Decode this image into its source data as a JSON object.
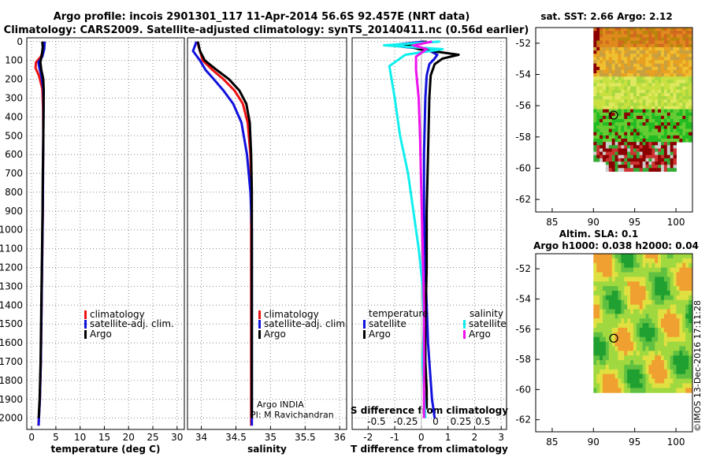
{
  "title_line1": "Argo profile: incois 2901301_117 11-Apr-2014 56.6S 92.457E (NRT data)",
  "title_line2": "Climatology: CARS2009. Satellite-adjusted climatology: synTS_20140411.nc (0.56d earlier)",
  "colors": {
    "climatology": "#ee1111",
    "satellite": "#1111dd",
    "argo": "#000000",
    "cyan": "#11eeee",
    "magenta": "#ee11ee"
  },
  "watermark": "©IMOS 13-Dec-2016 17:11:28",
  "credit": {
    "line1": "Argo INDIA",
    "line2": "PI: M Ravichandran"
  },
  "legends": {
    "temp": [
      "climatology",
      "satellite-adj. clim.",
      "Argo"
    ],
    "sal": [
      "climatology",
      "satellite-adj. clim.",
      "Argo"
    ],
    "diff_temperature_title": "temperature",
    "diff_salinity_title": "salinity",
    "diff_temperature": [
      "satellite",
      "Argo"
    ],
    "diff_salinity": [
      "satellite",
      "Argo"
    ]
  },
  "sst_panel": {
    "title": "sat. SST: 2.66 Argo: 2.12",
    "xticks": [
      "85",
      "90",
      "95",
      "100"
    ],
    "yticks": [
      "-52",
      "-54",
      "-56",
      "-58",
      "-60",
      "-62"
    ]
  },
  "sla_panel": {
    "title1": "Altim. SLA: 0.1",
    "title2": "Argo h1000: 0.038 h2000: 0.04",
    "xticks": [
      "85",
      "90",
      "95",
      "100"
    ],
    "yticks": [
      "-52",
      "-54",
      "-56",
      "-58",
      "-60",
      "-62"
    ]
  },
  "chart_data": [
    {
      "type": "line",
      "xlabel": "temperature (deg C)",
      "ylabel": "",
      "xlim": [
        -1,
        31.5
      ],
      "ylim": [
        2060,
        -20
      ],
      "xticks": [
        "0",
        "5",
        "10",
        "15",
        "20",
        "25",
        "30"
      ],
      "xtick_values": [
        0,
        5,
        10,
        15,
        20,
        25,
        30
      ],
      "yticks": [
        "0",
        "100",
        "200",
        "300",
        "400",
        "500",
        "600",
        "700",
        "800",
        "900",
        "1000",
        "1100",
        "1200",
        "1300",
        "1400",
        "1500",
        "1600",
        "1700",
        "1800",
        "1900",
        "2000"
      ],
      "ytick_values": [
        0,
        100,
        200,
        300,
        400,
        500,
        600,
        700,
        800,
        900,
        1000,
        1100,
        1200,
        1300,
        1400,
        1500,
        1600,
        1700,
        1800,
        1900,
        2000
      ],
      "series": [
        {
          "name": "climatology",
          "color": "#ee1111",
          "x": [
            2.6,
            2.5,
            1.9,
            0.9,
            0.8,
            1.5,
            2.2,
            2.35,
            2.4,
            2.35,
            2.3,
            2.2,
            2.1,
            2.0,
            1.9,
            1.8,
            1.7,
            1.6,
            1.5,
            1.4
          ],
          "y": [
            0,
            40,
            80,
            110,
            140,
            180,
            250,
            350,
            500,
            700,
            900,
            1100,
            1300,
            1500,
            1700,
            1800,
            1900,
            1950,
            2000,
            2040
          ]
        },
        {
          "name": "satellite-adj. clim.",
          "color": "#1111dd",
          "x": [
            2.7,
            2.6,
            2.2,
            1.4,
            1.6,
            2.0,
            2.4,
            2.45,
            2.4,
            2.35,
            2.3,
            2.2,
            2.1,
            2.0,
            1.9,
            1.8,
            1.7,
            1.6,
            1.5,
            1.45
          ],
          "y": [
            0,
            40,
            80,
            110,
            140,
            180,
            250,
            350,
            500,
            700,
            900,
            1100,
            1300,
            1500,
            1700,
            1800,
            1900,
            1950,
            2000,
            2040
          ]
        },
        {
          "name": "Argo",
          "color": "#000000",
          "x": [
            2.2,
            2.3,
            2.1,
            1.8,
            2.0,
            2.4,
            2.5,
            2.45,
            2.4,
            2.3,
            2.25,
            2.15,
            2.05,
            1.95,
            1.85,
            1.75,
            1.65,
            1.55,
            1.45
          ],
          "y": [
            0,
            30,
            70,
            110,
            150,
            200,
            260,
            400,
            550,
            700,
            900,
            1100,
            1300,
            1500,
            1700,
            1800,
            1900,
            1950,
            2000
          ]
        }
      ]
    },
    {
      "type": "line",
      "xlabel": "salinity",
      "xlim": [
        33.8,
        36.1
      ],
      "ylim": [
        2060,
        -20
      ],
      "xticks": [
        "34",
        "34.5",
        "35",
        "35.5",
        "36"
      ],
      "xtick_values": [
        34,
        34.5,
        35,
        35.5,
        36
      ],
      "series": [
        {
          "name": "climatology",
          "color": "#ee1111",
          "x": [
            33.94,
            33.98,
            34.02,
            34.16,
            34.32,
            34.48,
            34.6,
            34.67,
            34.71,
            34.72,
            34.72,
            34.72,
            34.72,
            34.72,
            34.72,
            34.72
          ],
          "y": [
            0,
            50,
            100,
            150,
            200,
            260,
            330,
            430,
            600,
            800,
            1000,
            1200,
            1400,
            1600,
            1800,
            2040
          ]
        },
        {
          "name": "satellite-adj. clim.",
          "color": "#1111dd",
          "x": [
            33.93,
            33.88,
            33.98,
            34.06,
            34.18,
            34.32,
            34.46,
            34.58,
            34.66,
            34.71,
            34.73,
            34.73,
            34.73,
            34.73,
            34.73,
            34.73
          ],
          "y": [
            0,
            50,
            100,
            150,
            200,
            260,
            330,
            430,
            600,
            800,
            1000,
            1200,
            1400,
            1600,
            1800,
            2040
          ]
        },
        {
          "name": "Argo",
          "color": "#000000",
          "x": [
            33.95,
            33.98,
            34.05,
            34.22,
            34.4,
            34.55,
            34.65,
            34.7,
            34.72,
            34.73,
            34.73,
            34.73,
            34.73,
            34.73,
            34.73
          ],
          "y": [
            0,
            50,
            100,
            150,
            200,
            260,
            330,
            430,
            600,
            800,
            1000,
            1200,
            1400,
            1600,
            2000
          ]
        }
      ]
    },
    {
      "type": "line",
      "xlabel": "T difference from climatology",
      "xlabel2": "S difference from climatology",
      "xlim": [
        -2.6,
        3.2
      ],
      "ylim": [
        2060,
        -20
      ],
      "xticks": [
        "-2",
        "-1",
        "0",
        "1",
        "2",
        "3"
      ],
      "xtick_values": [
        -2,
        -1,
        0,
        1,
        2,
        3
      ],
      "xticks_top": [
        "-0.5",
        "-0.25",
        "0",
        "0.25",
        "0.5"
      ],
      "series": [
        {
          "name": "temperature satellite",
          "color": "#1111dd",
          "x": [
            0.1,
            -1.2,
            0.2,
            0.6,
            0.5,
            0.3,
            0.2,
            0.15,
            0.1,
            0.1,
            0.15,
            0.2,
            0.25,
            0.3,
            0.35,
            0.4,
            0.45,
            0.5
          ],
          "y": [
            0,
            20,
            40,
            70,
            90,
            120,
            180,
            300,
            600,
            900,
            1200,
            1400,
            1600,
            1700,
            1800,
            1900,
            1950,
            2000
          ]
        },
        {
          "name": "temperature Argo",
          "color": "#000000",
          "x": [
            0.2,
            -0.6,
            -0.1,
            1.4,
            0.8,
            0.5,
            0.35,
            0.3,
            0.25,
            0.2,
            0.2,
            0.15,
            0.15,
            0.2,
            0.2
          ],
          "y": [
            0,
            20,
            40,
            70,
            90,
            120,
            180,
            300,
            600,
            900,
            1200,
            1500,
            1700,
            1850,
            1950
          ]
        },
        {
          "name": "salinity satellite",
          "color": "#11eeee",
          "x": [
            0.7,
            -1.4,
            0.8,
            -0.6,
            -1.2,
            -1.0,
            -0.8,
            -0.5,
            -0.3,
            -0.1,
            0.05,
            0.1,
            0.05,
            0.1,
            0.15
          ],
          "y": [
            0,
            20,
            40,
            70,
            130,
            300,
            500,
            700,
            900,
            1100,
            1300,
            1500,
            1700,
            1850,
            2000
          ]
        },
        {
          "name": "salinity Argo",
          "color": "#ee11ee",
          "x": [
            0.4,
            -0.3,
            0.2,
            -0.2,
            -0.2,
            -0.1,
            -0.05,
            0.0,
            0.05,
            0.1,
            0.1,
            0.1
          ],
          "y": [
            0,
            20,
            40,
            80,
            150,
            300,
            500,
            800,
            1100,
            1400,
            1700,
            2000
          ]
        }
      ]
    }
  ]
}
